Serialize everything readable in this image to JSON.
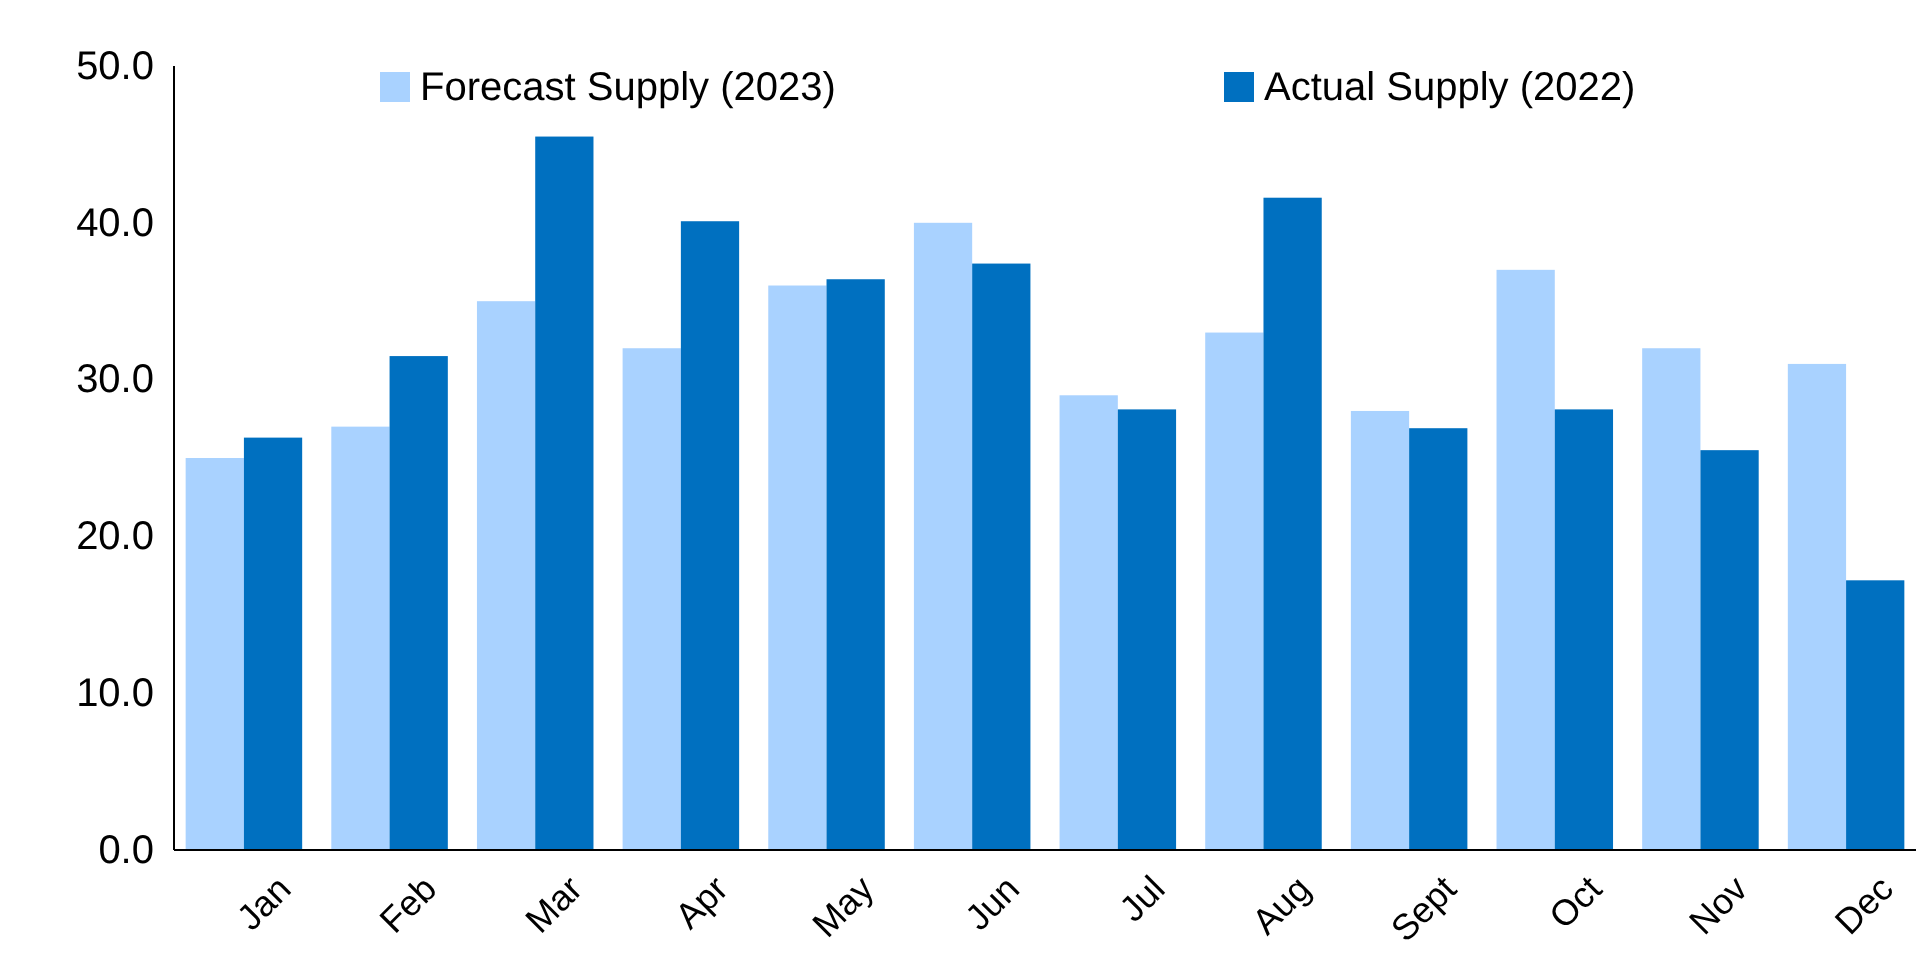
{
  "chart_data": {
    "type": "bar",
    "categories": [
      "Jan",
      "Feb",
      "Mar",
      "Apr",
      "May",
      "Jun",
      "Jul",
      "Aug",
      "Sept",
      "Oct",
      "Nov",
      "Dec"
    ],
    "series": [
      {
        "name": "Forecast Supply (2023)",
        "color": "#a9d2ff",
        "values": [
          25,
          27,
          35,
          32,
          36,
          40,
          29,
          33,
          28,
          37,
          32,
          31
        ]
      },
      {
        "name": "Actual Supply (2022)",
        "color": "#0070c0",
        "values": [
          26.3,
          31.5,
          45.5,
          40.1,
          36.4,
          37.4,
          28.1,
          41.6,
          26.9,
          28.1,
          25.5,
          17.2
        ]
      }
    ],
    "ylim": [
      0,
      50
    ],
    "yticks": [
      {
        "value": 0,
        "label": "0.0"
      },
      {
        "value": 10,
        "label": "10.0"
      },
      {
        "value": 20,
        "label": "20.0"
      },
      {
        "value": 30,
        "label": "30.0"
      },
      {
        "value": 40,
        "label": "40.0"
      },
      {
        "value": 50,
        "label": "50.0"
      }
    ],
    "grid": false,
    "legend": "top"
  }
}
